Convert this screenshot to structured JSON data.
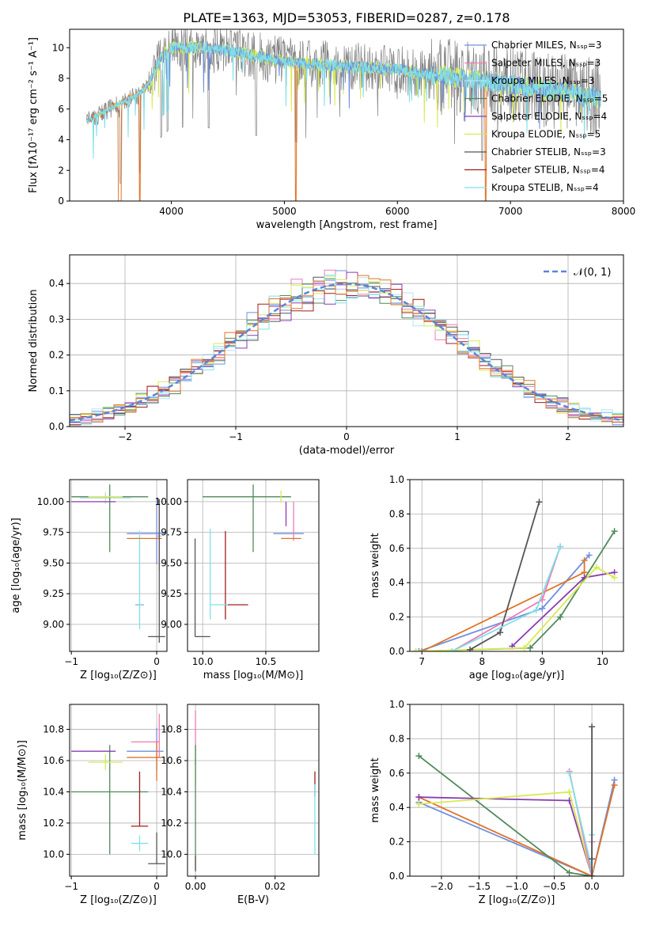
{
  "figure_title": "PLATE=1363, MJD=53053, FIBERID=0287, z=0.178",
  "colors": {
    "chabrier_miles": "#6f8fde",
    "salpeter_miles": "#f07ab4",
    "kroupa_miles": "#b7e1f6",
    "chabrier_elodie": "#4f8a5a",
    "salpeter_elodie": "#8b3bb3",
    "kroupa_elodie": "#d7ea4f",
    "chabrier_stelib": "#555555",
    "salpeter_stelib": "#a11d1d",
    "kroupa_stelib": "#7fe0e8",
    "data_spectrum": "#808080",
    "orange": "#e07328",
    "gaussian": "#5b86d6"
  },
  "chart_data": [
    {
      "id": "spectrum",
      "type": "line",
      "xlabel": "wavelength [Angstrom, rest frame]",
      "ylabel": "Flux [fλ10⁻¹⁷ erg cm⁻² s⁻¹ A⁻¹]",
      "xlim": [
        3100,
        8000
      ],
      "ylim": [
        0,
        11.2
      ],
      "xticks": [
        4000,
        5000,
        6000,
        7000,
        8000
      ],
      "yticks": [
        0,
        2,
        4,
        6,
        8,
        10
      ],
      "legend_position": "top-right",
      "legend": [
        {
          "label": "Chabrier MILES, Nₛₛₚ=3",
          "color": "#6f8fde"
        },
        {
          "label": "Salpeter MILES, Nₛₛₚ=3",
          "color": "#f07ab4"
        },
        {
          "label": "Kroupa MILES, Nₛₛₚ=3",
          "color": "#b7e1f6"
        },
        {
          "label": "Chabrier ELODIE, Nₛₛₚ=5",
          "color": "#4f8a5a"
        },
        {
          "label": "Salpeter ELODIE, Nₛₛₚ=4",
          "color": "#8b3bb3"
        },
        {
          "label": "Kroupa ELODIE, Nₛₛₚ=5",
          "color": "#d7ea4f"
        },
        {
          "label": "Chabrier STELIB, Nₛₛₚ=3",
          "color": "#555555"
        },
        {
          "label": "Salpeter STELIB, Nₛₛₚ=4",
          "color": "#a11d1d"
        },
        {
          "label": "Kroupa STELIB, Nₛₛₚ=4",
          "color": "#7fe0e8"
        }
      ],
      "continuum": {
        "x": [
          3250,
          3500,
          3700,
          3800,
          3900,
          4000,
          4300,
          4600,
          5000,
          5500,
          6000,
          6300,
          6500,
          7000,
          7500,
          7800
        ],
        "y": [
          5.2,
          6.2,
          6.9,
          7.6,
          9.3,
          10.0,
          10.0,
          9.7,
          9.1,
          8.8,
          8.6,
          8.2,
          8.1,
          7.6,
          7.1,
          6.7
        ]
      },
      "absorption_dips": [
        3550,
        3720,
        3910,
        3965,
        4100,
        4330,
        4750,
        5105,
        6750
      ]
    },
    {
      "id": "residuals",
      "type": "histogram",
      "xlabel": "(data-model)/error",
      "ylabel": "Normed distribution",
      "xlim": [
        -2.5,
        2.5
      ],
      "ylim": [
        0,
        0.48
      ],
      "xticks": [
        -2,
        -1,
        0,
        1,
        2
      ],
      "yticks": [
        0.0,
        0.1,
        0.2,
        0.3,
        0.4
      ],
      "gaussian_label": "𝒩(0, 1)",
      "bin_width": 0.1,
      "legend_position": "top-right"
    },
    {
      "id": "age_vs_Z",
      "type": "errorbar",
      "xlabel": "Z [log₁₀(Z/Z⊙)]",
      "ylabel": "age  [log₁₀(age/yr)]",
      "xlim": [
        -1.02,
        0.12
      ],
      "ylim": [
        8.78,
        10.18
      ],
      "xticks": [
        -1,
        0
      ],
      "yticks": [
        9.0,
        9.25,
        9.5,
        9.75,
        10.0
      ],
      "points": [
        {
          "color": "#6f8fde",
          "x": 0.0,
          "y": 9.74,
          "xerr": [
            0.35,
            0.1
          ],
          "yerr": [
            0.25,
            0.28
          ]
        },
        {
          "color": "#f07ab4",
          "x": 0.03,
          "y": 9.72,
          "xerr": [
            0.02,
            0.02
          ],
          "yerr": [
            0.28,
            0.3
          ]
        },
        {
          "color": "#b7e1f6",
          "x": -0.6,
          "y": 10.03,
          "xerr": [
            0.3,
            0.3
          ],
          "yerr": [
            0.05,
            0.05
          ]
        },
        {
          "color": "#4f8a5a",
          "x": -0.55,
          "y": 10.04,
          "xerr": [
            0.45,
            0.45
          ],
          "yerr": [
            0.45,
            0.1
          ]
        },
        {
          "color": "#8b3bb3",
          "x": -1.0,
          "y": 10.0,
          "xerr": [
            0.0,
            0.52
          ],
          "yerr": [
            0.0,
            0.0
          ]
        },
        {
          "color": "#d7ea4f",
          "x": -0.6,
          "y": 10.04,
          "xerr": [
            0.2,
            0.2
          ],
          "yerr": [
            0.02,
            0.02
          ]
        },
        {
          "color": "#555555",
          "x": 0.0,
          "y": 8.9,
          "xerr": [
            0.1,
            0.1
          ],
          "yerr": [
            0.0,
            0.0
          ]
        },
        {
          "color": "#a11d1d",
          "x": -0.2,
          "y": 9.16,
          "xerr": [
            0.05,
            0.05
          ],
          "yerr": [
            0.0,
            0.0
          ]
        },
        {
          "color": "#7fe0e8",
          "x": -0.2,
          "y": 9.16,
          "xerr": [
            0.05,
            0.05
          ],
          "yerr": [
            0.2,
            0.6
          ]
        },
        {
          "color": "#e07328",
          "x": 0.0,
          "y": 9.7,
          "xerr": [
            0.35,
            0.06
          ],
          "yerr": [
            0.0,
            0.0
          ]
        },
        {
          "color": "#555555",
          "x": 0.03,
          "y": 9.6,
          "xerr": [
            0.0,
            0.0
          ],
          "yerr": [
            0.75,
            0.42
          ]
        }
      ]
    },
    {
      "id": "age_vs_mass",
      "type": "errorbar",
      "xlabel": "mass [log₁₀(M/M⊙)]",
      "ylabel": "",
      "xlim": [
        9.88,
        10.92
      ],
      "ylim": [
        8.78,
        10.18
      ],
      "xticks": [
        10.0,
        10.5
      ],
      "yticks": [
        9.0,
        9.25,
        9.5,
        9.75,
        10.0
      ],
      "points": [
        {
          "color": "#6f8fde",
          "x": 10.66,
          "y": 9.74,
          "xerr": [
            0.1,
            0.14
          ],
          "yerr": [
            0.0,
            0.0
          ]
        },
        {
          "color": "#f07ab4",
          "x": 10.72,
          "y": 9.8,
          "xerr": [
            0.0,
            0.0
          ],
          "yerr": [
            0.12,
            0.2
          ]
        },
        {
          "color": "#4f8a5a",
          "x": 10.4,
          "y": 10.04,
          "xerr": [
            0.4,
            0.3
          ],
          "yerr": [
            0.45,
            0.1
          ]
        },
        {
          "color": "#8b3bb3",
          "x": 10.66,
          "y": 10.0,
          "xerr": [
            0.0,
            0.0
          ],
          "yerr": [
            0.2,
            0.0
          ]
        },
        {
          "color": "#e07328",
          "x": 10.62,
          "y": 9.7,
          "xerr": [
            0.0,
            0.16
          ],
          "yerr": [
            0.0,
            0.0
          ]
        },
        {
          "color": "#555555",
          "x": 9.94,
          "y": 8.9,
          "xerr": [
            0.0,
            0.12
          ],
          "yerr": [
            0.0,
            0.8
          ]
        },
        {
          "color": "#a11d1d",
          "x": 10.18,
          "y": 9.16,
          "xerr": [
            0.0,
            0.18
          ],
          "yerr": [
            0.12,
            0.6
          ]
        },
        {
          "color": "#7fe0e8",
          "x": 10.06,
          "y": 9.16,
          "xerr": [
            0.0,
            0.14
          ],
          "yerr": [
            0.12,
            0.62
          ]
        },
        {
          "color": "#d7ea4f",
          "x": 10.62,
          "y": 10.04,
          "xerr": [
            0.0,
            0.0
          ],
          "yerr": [
            0.05,
            0.05
          ]
        }
      ]
    },
    {
      "id": "weight_vs_age",
      "type": "line",
      "xlabel": "age  [log₁₀(age/yr)]",
      "ylabel": "mass weight",
      "xlim": [
        6.8,
        10.35
      ],
      "ylim": [
        0,
        1.0
      ],
      "xticks": [
        7,
        8,
        9,
        10
      ],
      "yticks": [
        0.0,
        0.2,
        0.4,
        0.6,
        0.8,
        1.0
      ],
      "series": [
        {
          "color": "#6f8fde",
          "x": [
            6.95,
            9.0,
            9.78
          ],
          "y": [
            0.0,
            0.25,
            0.56
          ]
        },
        {
          "color": "#e07328",
          "x": [
            7.0,
            9.7,
            9.7
          ],
          "y": [
            0.0,
            0.46,
            0.53
          ]
        },
        {
          "color": "#f07ab4",
          "x": [
            7.5,
            9.0,
            9.3
          ],
          "y": [
            0.0,
            0.3,
            0.61
          ]
        },
        {
          "color": "#4f8a5a",
          "x": [
            6.9,
            8.8,
            9.3,
            10.2
          ],
          "y": [
            0.0,
            0.02,
            0.2,
            0.7
          ]
        },
        {
          "color": "#8b3bb3",
          "x": [
            8.5,
            9.7,
            10.2
          ],
          "y": [
            0.03,
            0.43,
            0.46
          ]
        },
        {
          "color": "#d7ea4f",
          "x": [
            6.9,
            8.7,
            9.9,
            10.2
          ],
          "y": [
            0.0,
            0.02,
            0.49,
            0.43
          ]
        },
        {
          "color": "#555555",
          "x": [
            7.8,
            8.3,
            8.95
          ],
          "y": [
            0.01,
            0.11,
            0.87
          ]
        },
        {
          "color": "#7fe0e8",
          "x": [
            7.5,
            8.9,
            9.3
          ],
          "y": [
            0.0,
            0.24,
            0.61
          ]
        }
      ]
    },
    {
      "id": "mass_vs_Z",
      "type": "errorbar",
      "xlabel": "Z [log₁₀(Z/Z⊙)]",
      "ylabel": "mass [log₁₀(M/M⊙)]",
      "xlim": [
        -1.02,
        0.12
      ],
      "ylim": [
        9.86,
        10.96
      ],
      "xticks": [
        -1,
        0
      ],
      "yticks": [
        10.0,
        10.2,
        10.4,
        10.6,
        10.8
      ],
      "points": [
        {
          "color": "#6f8fde",
          "x": 0.0,
          "y": 10.66,
          "xerr": [
            0.35,
            0.08
          ],
          "yerr": [
            0.12,
            0.15
          ]
        },
        {
          "color": "#f07ab4",
          "x": 0.03,
          "y": 10.72,
          "xerr": [
            0.33,
            0.0
          ],
          "yerr": [
            0.1,
            0.18
          ]
        },
        {
          "color": "#4f8a5a",
          "x": -0.55,
          "y": 10.4,
          "xerr": [
            0.45,
            0.45
          ],
          "yerr": [
            0.4,
            0.3
          ]
        },
        {
          "color": "#8b3bb3",
          "x": -1.0,
          "y": 10.66,
          "xerr": [
            0.0,
            0.52
          ],
          "yerr": [
            0.0,
            0.0
          ]
        },
        {
          "color": "#d7ea4f",
          "x": -0.6,
          "y": 10.59,
          "xerr": [
            0.2,
            0.2
          ],
          "yerr": [
            0.05,
            0.05
          ]
        },
        {
          "color": "#e07328",
          "x": 0.0,
          "y": 10.62,
          "xerr": [
            0.35,
            0.06
          ],
          "yerr": [
            0.15,
            0.1
          ]
        },
        {
          "color": "#555555",
          "x": 0.0,
          "y": 9.94,
          "xerr": [
            0.1,
            0.1
          ],
          "yerr": [
            0.0,
            0.2
          ]
        },
        {
          "color": "#a11d1d",
          "x": -0.2,
          "y": 10.18,
          "xerr": [
            0.1,
            0.1
          ],
          "yerr": [
            0.0,
            0.35
          ]
        },
        {
          "color": "#7fe0e8",
          "x": -0.2,
          "y": 10.07,
          "xerr": [
            0.1,
            0.1
          ],
          "yerr": [
            0.05,
            0.05
          ]
        }
      ]
    },
    {
      "id": "mass_vs_EBV",
      "type": "errorbar",
      "xlabel": "E(B-V)",
      "ylabel": "",
      "xlim": [
        -0.002,
        0.031
      ],
      "ylim": [
        9.86,
        10.96
      ],
      "xticks": [
        0.0,
        0.02
      ],
      "tick_labels": [
        "0.00",
        "0.02"
      ],
      "yticks": [
        10.0,
        10.2,
        10.4,
        10.6,
        10.8
      ],
      "points": [
        {
          "color": "#f07ab4",
          "x": 0.0,
          "y": 10.72,
          "yerr": [
            0.15,
            0.2
          ]
        },
        {
          "color": "#d7ea4f",
          "x": 0.0,
          "y": 10.59,
          "yerr": [
            0.15,
            0.1
          ]
        },
        {
          "color": "#4f8a5a",
          "x": 0.0,
          "y": 10.4,
          "yerr": [
            0.5,
            0.3
          ]
        },
        {
          "color": "#555555",
          "x": 0.0,
          "y": 9.94,
          "yerr": [
            0.05,
            0.05
          ]
        },
        {
          "color": "#a11d1d",
          "x": 0.03,
          "y": 10.45,
          "yerr": [
            0.08,
            0.08
          ]
        },
        {
          "color": "#7fe0e8",
          "x": 0.03,
          "y": 10.2,
          "yerr": [
            0.2,
            0.25
          ]
        }
      ]
    },
    {
      "id": "weight_vs_Z",
      "type": "line",
      "xlabel": "Z [log₁₀(Z/Z⊙)]",
      "ylabel": "mass weight",
      "xlim": [
        -2.42,
        0.42
      ],
      "ylim": [
        0,
        1.0
      ],
      "xticks": [
        -2.0,
        -1.5,
        -1.0,
        -0.5,
        0.0
      ],
      "yticks": [
        0.0,
        0.2,
        0.4,
        0.6,
        0.8,
        1.0
      ],
      "series": [
        {
          "color": "#6f8fde",
          "x": [
            -2.3,
            0.0,
            0.3
          ],
          "y": [
            0.43,
            0.0,
            0.56
          ]
        },
        {
          "color": "#e07328",
          "x": [
            -2.3,
            0.0,
            0.3
          ],
          "y": [
            0.46,
            0.0,
            0.53
          ]
        },
        {
          "color": "#4f8a5a",
          "x": [
            -2.3,
            -0.3,
            0.0
          ],
          "y": [
            0.7,
            0.02,
            0.0
          ]
        },
        {
          "color": "#8b3bb3",
          "x": [
            -2.3,
            -0.3,
            0.0
          ],
          "y": [
            0.46,
            0.44,
            0.0
          ]
        },
        {
          "color": "#d7ea4f",
          "x": [
            -2.3,
            -0.3,
            0.0
          ],
          "y": [
            0.42,
            0.49,
            0.0
          ]
        },
        {
          "color": "#f07ab4",
          "x": [
            -0.3,
            0.0,
            0.0
          ],
          "y": [
            0.61,
            0.0,
            0.2
          ]
        },
        {
          "color": "#7fe0e8",
          "x": [
            -0.3,
            0.0,
            0.0
          ],
          "y": [
            0.6,
            0.04,
            0.24
          ]
        },
        {
          "color": "#555555",
          "x": [
            0.0,
            0.0,
            0.0
          ],
          "y": [
            0.87,
            0.1,
            0.0
          ]
        }
      ]
    }
  ]
}
